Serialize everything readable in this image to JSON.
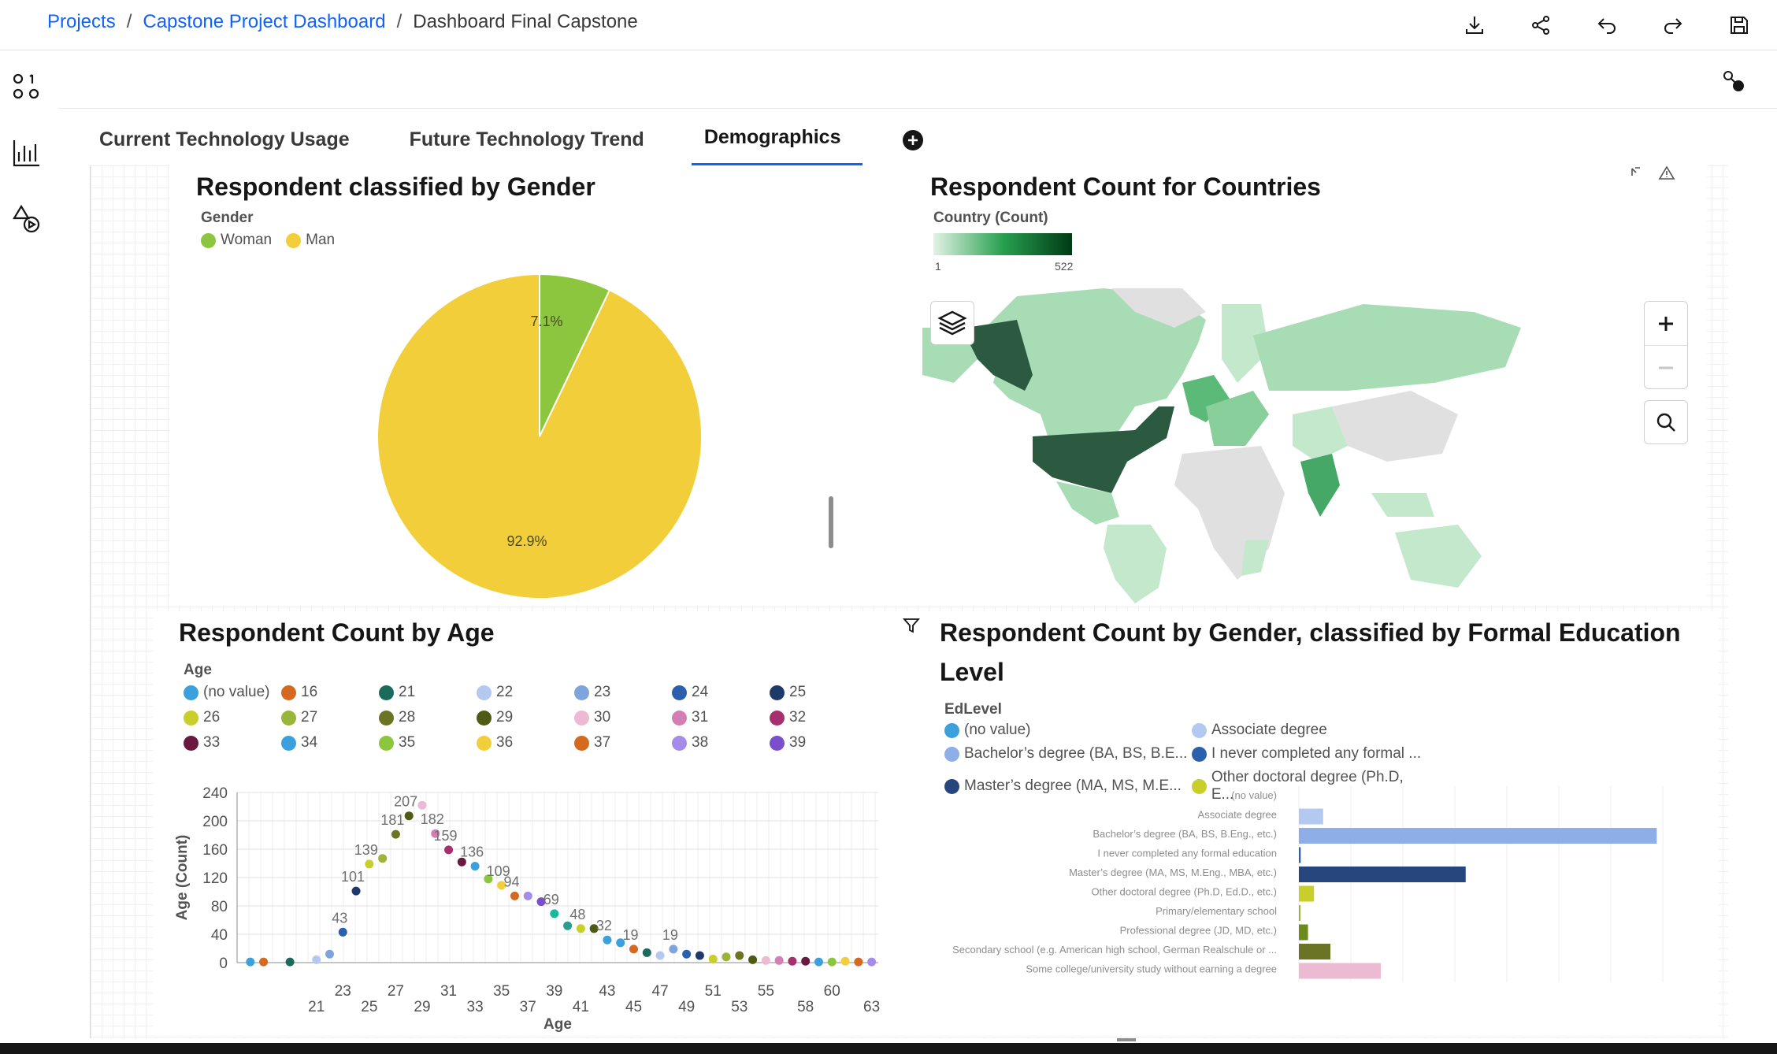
{
  "breadcrumb": {
    "projects": "Projects",
    "sep1": "/",
    "dashboard": "Capstone Project Dashboard",
    "sep2": "/",
    "current": "Dashboard Final Capstone"
  },
  "tabs": [
    {
      "label": "Current Technology Usage"
    },
    {
      "label": "Future Technology Trend"
    },
    {
      "label": "Demographics"
    }
  ],
  "colors": {
    "accent": "#0f62fe",
    "woman": "#8cc63f",
    "man": "#f2cf3a"
  },
  "gender_panel": {
    "title": "Respondent classified by Gender",
    "legend_title": "Gender",
    "legend": [
      "Woman",
      "Man"
    ],
    "labels": [
      "7.1%",
      "92.9%"
    ]
  },
  "country_panel": {
    "title": "Respondent Count for Countries",
    "legend_title": "Country (Count)",
    "scale_min": "1",
    "scale_max": "522"
  },
  "age_panel": {
    "title": "Respondent Count by Age",
    "legend_title": "Age",
    "legend": [
      "(no value)",
      "16",
      "21",
      "22",
      "23",
      "24",
      "25",
      "26",
      "27",
      "28",
      "29",
      "30",
      "31",
      "32",
      "33",
      "34",
      "35",
      "36",
      "37",
      "38",
      "39"
    ],
    "xlabel": "Age",
    "ylabel": "Age (Count)"
  },
  "edu_panel": {
    "title_line1": "Respondent Count by Gender, classified by Formal Education",
    "title_line2": "Level",
    "legend_title": "EdLevel",
    "legend": [
      "(no value)",
      "Associate degree",
      "Bachelor’s degree (BA, BS, B.E...",
      "I never completed any formal ...",
      "Master’s degree (MA, MS, M.E...",
      "Other doctoral degree (Ph.D, E..."
    ]
  },
  "chart_data": [
    {
      "type": "pie",
      "title": "Respondent classified by Gender",
      "slices": [
        {
          "label": "Woman",
          "percent": 7.1
        },
        {
          "label": "Man",
          "percent": 92.9
        }
      ]
    },
    {
      "type": "scatter",
      "title": "Respondent Count by Age",
      "xlabel": "Age",
      "ylabel": "Age (Count)",
      "ylim": [
        0,
        240
      ],
      "yticks": [
        0,
        40,
        80,
        120,
        160,
        200,
        240
      ],
      "xticks_top": [
        "23",
        "27",
        "31",
        "35",
        "39",
        "43",
        "47",
        "51",
        "55",
        "60"
      ],
      "xticks_bottom": [
        "21",
        "25",
        "29",
        "33",
        "37",
        "41",
        "45",
        "49",
        "53",
        "58",
        "63"
      ],
      "points": [
        {
          "x": 16,
          "y": 1
        },
        {
          "x": 17,
          "y": 1
        },
        {
          "x": 19,
          "y": 1
        },
        {
          "x": 21,
          "y": 4
        },
        {
          "x": 22,
          "y": 12
        },
        {
          "x": 23,
          "y": 43,
          "label": "43"
        },
        {
          "x": 24,
          "y": 101,
          "label": "101"
        },
        {
          "x": 25,
          "y": 139,
          "label": "139"
        },
        {
          "x": 26,
          "y": 147
        },
        {
          "x": 27,
          "y": 181,
          "label": "181"
        },
        {
          "x": 28,
          "y": 207,
          "label": "207"
        },
        {
          "x": 29,
          "y": 222
        },
        {
          "x": 30,
          "y": 182,
          "label": "182"
        },
        {
          "x": 31,
          "y": 159,
          "label": "159"
        },
        {
          "x": 32,
          "y": 142
        },
        {
          "x": 33,
          "y": 136,
          "label": "136"
        },
        {
          "x": 34,
          "y": 118
        },
        {
          "x": 35,
          "y": 109,
          "label": "109"
        },
        {
          "x": 36,
          "y": 94,
          "label": "94"
        },
        {
          "x": 37,
          "y": 94
        },
        {
          "x": 38,
          "y": 86
        },
        {
          "x": 39,
          "y": 69,
          "label": "69"
        },
        {
          "x": 40,
          "y": 52
        },
        {
          "x": 41,
          "y": 48,
          "label": "48"
        },
        {
          "x": 42,
          "y": 48
        },
        {
          "x": 43,
          "y": 32,
          "label": "32"
        },
        {
          "x": 44,
          "y": 28
        },
        {
          "x": 45,
          "y": 19,
          "label": "19"
        },
        {
          "x": 46,
          "y": 14
        },
        {
          "x": 47,
          "y": 10
        },
        {
          "x": 48,
          "y": 19,
          "label": "19"
        },
        {
          "x": 49,
          "y": 12
        },
        {
          "x": 50,
          "y": 10
        },
        {
          "x": 51,
          "y": 5
        },
        {
          "x": 52,
          "y": 8
        },
        {
          "x": 53,
          "y": 10
        },
        {
          "x": 54,
          "y": 4
        },
        {
          "x": 55,
          "y": 3
        },
        {
          "x": 56,
          "y": 3
        },
        {
          "x": 57,
          "y": 2
        },
        {
          "x": 58,
          "y": 2
        },
        {
          "x": 59,
          "y": 1
        },
        {
          "x": 60,
          "y": 1
        },
        {
          "x": 61,
          "y": 2
        },
        {
          "x": 62,
          "y": 1
        },
        {
          "x": 63,
          "y": 1
        }
      ]
    },
    {
      "type": "bar",
      "title": "Respondent Count by Gender, classified by Formal Education Level",
      "orientation": "horizontal",
      "categories": [
        "(no value)",
        "Associate degree",
        "Bachelor’s degree (BA, BS, B.Eng., etc.)",
        "I never completed any formal education",
        "Master’s degree (MA, MS, M.Eng., MBA, etc.)",
        "Other doctoral degree (Ph.D, Ed.D., etc.)",
        "Primary/elementary school",
        "Professional degree (JD, MD, etc.)",
        "Secondary school (e.g. American high school, German Realschule or ...",
        "Some college/university study without earning a degree"
      ],
      "values": [
        0,
        400,
        5900,
        30,
        2750,
        250,
        20,
        150,
        520,
        1350
      ],
      "colors": [
        "#3ba0dc",
        "#b4c9ef",
        "#8eaee8",
        "#2c5fac",
        "#27467d",
        "#c9cf2a",
        "#9ab53a",
        "#6d8a1d",
        "#6b7324",
        "#ecbad2"
      ],
      "xlim": [
        0,
        6000
      ]
    }
  ]
}
